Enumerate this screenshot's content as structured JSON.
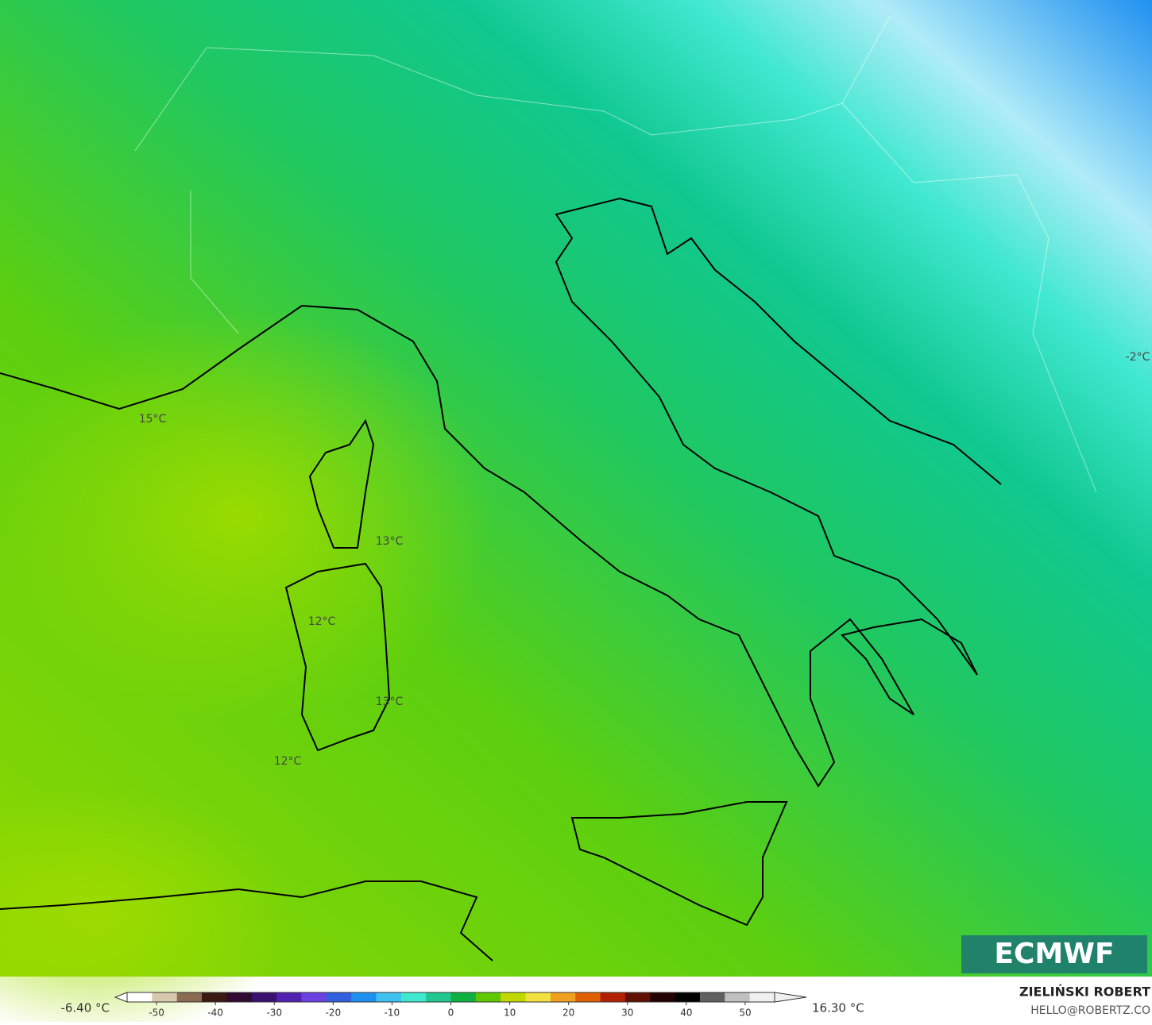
{
  "map": {
    "labels": [
      "15°C",
      "13°C",
      "12°C",
      "13°C",
      "12°C",
      "-2°C"
    ]
  },
  "colorbar": {
    "min_label": "-6.40 °C",
    "max_label": "16.30 °C",
    "range": [
      -55,
      55
    ],
    "ticks": [
      -50,
      -40,
      -30,
      -20,
      -10,
      0,
      10,
      20,
      30,
      40,
      50
    ],
    "colors": [
      "#ffffff",
      "#d8c8b0",
      "#8a6a50",
      "#3a1a10",
      "#300a30",
      "#3a1070",
      "#5020b0",
      "#6a40e0",
      "#3060e0",
      "#2090f0",
      "#40c0f0",
      "#40e8d0",
      "#20c890",
      "#10b040",
      "#60c800",
      "#c0d800",
      "#f0e040",
      "#f0a020",
      "#e06000",
      "#b02000",
      "#601000",
      "#200000",
      "#000000",
      "#606060",
      "#c0c0c0",
      "#f0f0f0"
    ]
  },
  "logo": "ECMWF",
  "author": "ZIELIŃSKI ROBERT",
  "contact": "HELLO@ROBERTZ.CO"
}
